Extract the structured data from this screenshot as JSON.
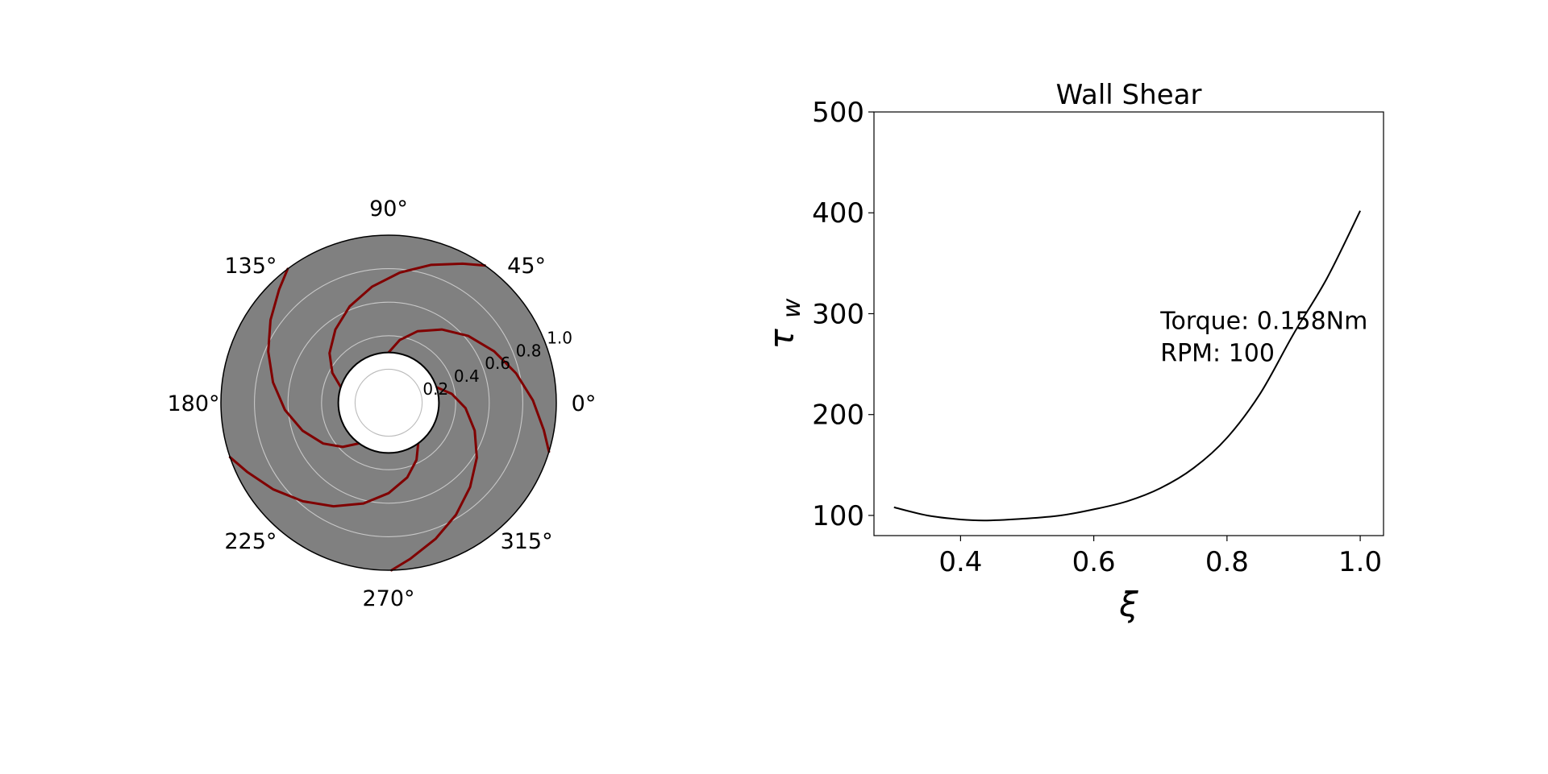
{
  "chart_data": [
    {
      "type": "polar",
      "angular_tick_labels": [
        "0°",
        "45°",
        "90°",
        "135°",
        "180°",
        "225°",
        "270°",
        "315°"
      ],
      "angular_ticks_deg": [
        0,
        45,
        90,
        135,
        180,
        225,
        270,
        315
      ],
      "radial_tick_labels": [
        "0.2",
        "0.4",
        "0.6",
        "0.8",
        "1.0"
      ],
      "radial_ticks": [
        0.2,
        0.4,
        0.6,
        0.8,
        1.0
      ],
      "rlim": [
        0,
        1.0
      ],
      "hub_radius": 0.3,
      "grid": true,
      "background_color": "#808080",
      "hub_color": "#ffffff",
      "series": [
        {
          "color": "#800000",
          "blade_count": 5,
          "blade_start_angles_deg": [
            90,
            162,
            234,
            306,
            18
          ],
          "blade_r": [
            0.3,
            0.38,
            0.46,
            0.54,
            0.62,
            0.7,
            0.78,
            0.86,
            0.94,
            1.0
          ],
          "blade_theta_offset_deg": [
            0,
            -10,
            -22,
            -36,
            -50,
            -64,
            -77,
            -89,
            -100,
            -107
          ]
        }
      ]
    },
    {
      "type": "line",
      "title": "Wall Shear",
      "xlabel": "ξ",
      "ylabel_main": "τ",
      "ylabel_sub": "w",
      "xlim": [
        0.27,
        1.035
      ],
      "ylim": [
        80,
        500
      ],
      "xticks": [
        0.4,
        0.6,
        0.8,
        1.0
      ],
      "xtick_labels": [
        "0.4",
        "0.6",
        "0.8",
        "1.0"
      ],
      "yticks": [
        100,
        200,
        300,
        400,
        500
      ],
      "ytick_labels": [
        "100",
        "200",
        "300",
        "400",
        "500"
      ],
      "grid": false,
      "annotations": [
        "Torque: 0.158Nm",
        "RPM: 100"
      ],
      "series": [
        {
          "color": "#000000",
          "x": [
            0.3,
            0.35,
            0.4,
            0.44,
            0.5,
            0.55,
            0.6,
            0.65,
            0.7,
            0.75,
            0.8,
            0.85,
            0.9,
            0.95,
            1.0
          ],
          "y": [
            108,
            100,
            96,
            95,
            97,
            100,
            106,
            114,
            127,
            147,
            177,
            221,
            280,
            335,
            402
          ]
        }
      ]
    }
  ]
}
